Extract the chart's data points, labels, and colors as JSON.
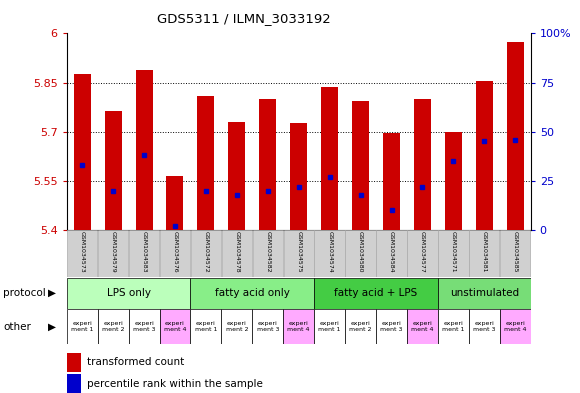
{
  "title": "GDS5311 / ILMN_3033192",
  "samples": [
    "GSM1034573",
    "GSM1034579",
    "GSM1034583",
    "GSM1034576",
    "GSM1034572",
    "GSM1034578",
    "GSM1034582",
    "GSM1034575",
    "GSM1034574",
    "GSM1034580",
    "GSM1034584",
    "GSM1034577",
    "GSM1034571",
    "GSM1034581",
    "GSM1034585"
  ],
  "transformed_count": [
    5.875,
    5.762,
    5.888,
    5.565,
    5.81,
    5.73,
    5.8,
    5.725,
    5.835,
    5.795,
    5.695,
    5.8,
    5.7,
    5.855,
    5.975
  ],
  "percentile_rank": [
    33,
    20,
    38,
    2,
    20,
    18,
    20,
    22,
    27,
    18,
    10,
    22,
    35,
    45,
    46
  ],
  "ymin": 5.4,
  "ymax": 6.0,
  "yticks": [
    5.4,
    5.55,
    5.7,
    5.85,
    6.0
  ],
  "ytick_labels": [
    "5.4",
    "5.55",
    "5.7",
    "5.85",
    "6"
  ],
  "y2min": 0,
  "y2max": 100,
  "y2ticks": [
    0,
    25,
    50,
    75,
    100
  ],
  "y2tick_labels": [
    "0",
    "25",
    "50",
    "75",
    "100%"
  ],
  "groups": [
    {
      "label": "LPS only",
      "start": 0,
      "end": 4,
      "color": "#bbffbb"
    },
    {
      "label": "fatty acid only",
      "start": 4,
      "end": 8,
      "color": "#88ee88"
    },
    {
      "label": "fatty acid + LPS",
      "start": 8,
      "end": 12,
      "color": "#44cc44"
    },
    {
      "label": "unstimulated",
      "start": 12,
      "end": 15,
      "color": "#77dd77"
    }
  ],
  "other_labels": [
    "experi\nment 1",
    "experi\nment 2",
    "experi\nment 3",
    "experi\nment 4",
    "experi\nment 1",
    "experi\nment 2",
    "experi\nment 3",
    "experi\nment 4",
    "experi\nment 1",
    "experi\nment 2",
    "experi\nment 3",
    "experi\nment 4",
    "experi\nment 1",
    "experi\nment 3",
    "experi\nment 4"
  ],
  "other_colors": [
    "#ffffff",
    "#ffffff",
    "#ffffff",
    "#ffaaff",
    "#ffffff",
    "#ffffff",
    "#ffffff",
    "#ffaaff",
    "#ffffff",
    "#ffffff",
    "#ffffff",
    "#ffaaff",
    "#ffffff",
    "#ffffff",
    "#ffaaff"
  ],
  "bar_color": "#cc0000",
  "dot_color": "#0000cc",
  "bar_width": 0.55,
  "left_tick_color": "#cc0000",
  "right_tick_color": "#0000cc",
  "dotted_grid_ticks": [
    5.55,
    5.7,
    5.85
  ],
  "legend_items": [
    {
      "color": "#cc0000",
      "label": "transformed count"
    },
    {
      "color": "#0000cc",
      "label": "percentile rank within the sample"
    }
  ]
}
